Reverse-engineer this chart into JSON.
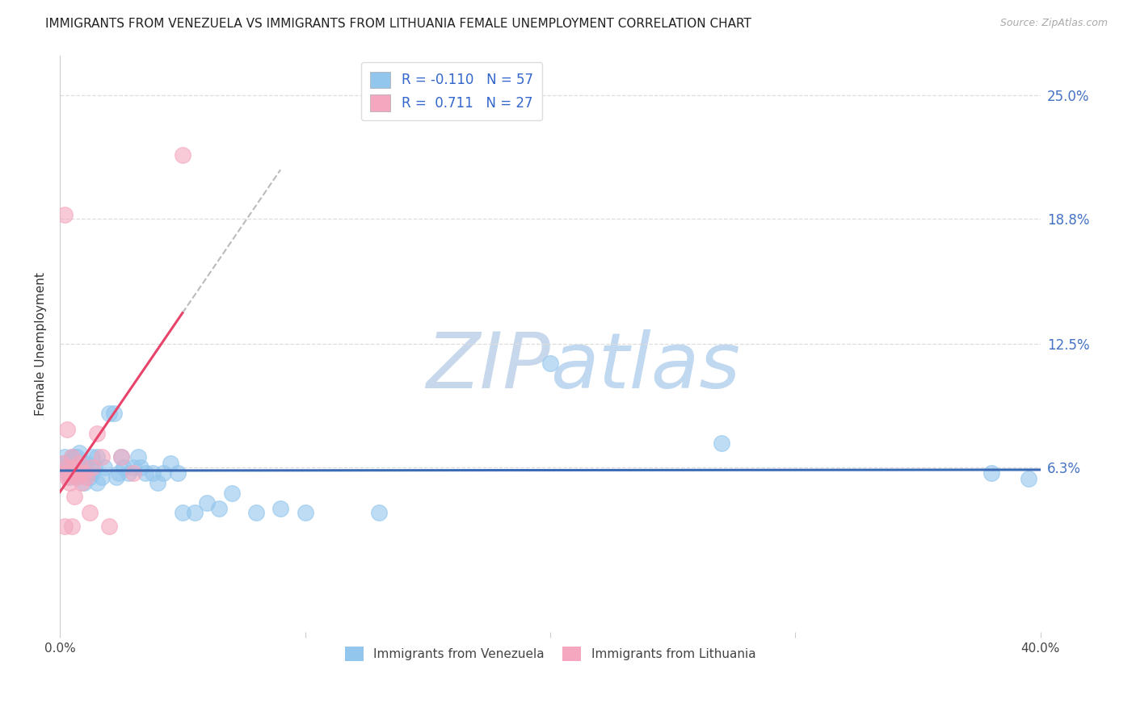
{
  "title": "IMMIGRANTS FROM VENEZUELA VS IMMIGRANTS FROM LITHUANIA FEMALE UNEMPLOYMENT CORRELATION CHART",
  "source": "Source: ZipAtlas.com",
  "ylabel": "Female Unemployment",
  "ytick_vals": [
    0.063,
    0.125,
    0.188,
    0.25
  ],
  "ytick_labels": [
    "6.3%",
    "12.5%",
    "18.8%",
    "25.0%"
  ],
  "xmin": 0.0,
  "xmax": 0.4,
  "ymin": -0.02,
  "ymax": 0.27,
  "venezuela_R": -0.11,
  "venezuela_N": 57,
  "lithuania_R": 0.711,
  "lithuania_N": 27,
  "venezuela_color": "#93C6ED",
  "lithuania_color": "#F4A7BE",
  "venezuela_line_color": "#3B6BB5",
  "lithuania_line_color": "#E8436A",
  "watermark_zip_color": "#C5D8EE",
  "watermark_atlas_color": "#C5D8EE",
  "legend_label_venezuela": "Immigrants from Venezuela",
  "legend_label_lithuania": "Immigrants from Lithuania",
  "venezuela_scatter": [
    [
      0.001,
      0.063
    ],
    [
      0.002,
      0.065
    ],
    [
      0.002,
      0.068
    ],
    [
      0.003,
      0.06
    ],
    [
      0.003,
      0.063
    ],
    [
      0.004,
      0.058
    ],
    [
      0.004,
      0.065
    ],
    [
      0.005,
      0.063
    ],
    [
      0.005,
      0.068
    ],
    [
      0.006,
      0.06
    ],
    [
      0.006,
      0.068
    ],
    [
      0.007,
      0.058
    ],
    [
      0.007,
      0.068
    ],
    [
      0.008,
      0.063
    ],
    [
      0.008,
      0.07
    ],
    [
      0.009,
      0.06
    ],
    [
      0.009,
      0.065
    ],
    [
      0.01,
      0.055
    ],
    [
      0.01,
      0.063
    ],
    [
      0.011,
      0.065
    ],
    [
      0.012,
      0.058
    ],
    [
      0.013,
      0.06
    ],
    [
      0.013,
      0.068
    ],
    [
      0.014,
      0.063
    ],
    [
      0.015,
      0.055
    ],
    [
      0.015,
      0.068
    ],
    [
      0.017,
      0.058
    ],
    [
      0.018,
      0.063
    ],
    [
      0.02,
      0.09
    ],
    [
      0.022,
      0.09
    ],
    [
      0.023,
      0.058
    ],
    [
      0.024,
      0.06
    ],
    [
      0.025,
      0.068
    ],
    [
      0.026,
      0.063
    ],
    [
      0.028,
      0.06
    ],
    [
      0.03,
      0.063
    ],
    [
      0.032,
      0.068
    ],
    [
      0.033,
      0.063
    ],
    [
      0.035,
      0.06
    ],
    [
      0.038,
      0.06
    ],
    [
      0.04,
      0.055
    ],
    [
      0.042,
      0.06
    ],
    [
      0.045,
      0.065
    ],
    [
      0.048,
      0.06
    ],
    [
      0.05,
      0.04
    ],
    [
      0.055,
      0.04
    ],
    [
      0.06,
      0.045
    ],
    [
      0.065,
      0.042
    ],
    [
      0.07,
      0.05
    ],
    [
      0.08,
      0.04
    ],
    [
      0.09,
      0.042
    ],
    [
      0.1,
      0.04
    ],
    [
      0.13,
      0.04
    ],
    [
      0.2,
      0.115
    ],
    [
      0.27,
      0.075
    ],
    [
      0.38,
      0.06
    ],
    [
      0.395,
      0.057
    ]
  ],
  "lithuania_scatter": [
    [
      0.001,
      0.065
    ],
    [
      0.002,
      0.06
    ],
    [
      0.002,
      0.19
    ],
    [
      0.003,
      0.058
    ],
    [
      0.003,
      0.063
    ],
    [
      0.004,
      0.055
    ],
    [
      0.004,
      0.06
    ],
    [
      0.005,
      0.068
    ],
    [
      0.005,
      0.033
    ],
    [
      0.006,
      0.063
    ],
    [
      0.006,
      0.048
    ],
    [
      0.007,
      0.058
    ],
    [
      0.008,
      0.06
    ],
    [
      0.008,
      0.065
    ],
    [
      0.009,
      0.055
    ],
    [
      0.01,
      0.06
    ],
    [
      0.011,
      0.058
    ],
    [
      0.012,
      0.04
    ],
    [
      0.013,
      0.063
    ],
    [
      0.015,
      0.08
    ],
    [
      0.017,
      0.068
    ],
    [
      0.02,
      0.033
    ],
    [
      0.025,
      0.068
    ],
    [
      0.03,
      0.06
    ],
    [
      0.05,
      0.22
    ],
    [
      0.003,
      0.082
    ],
    [
      0.002,
      0.033
    ]
  ]
}
